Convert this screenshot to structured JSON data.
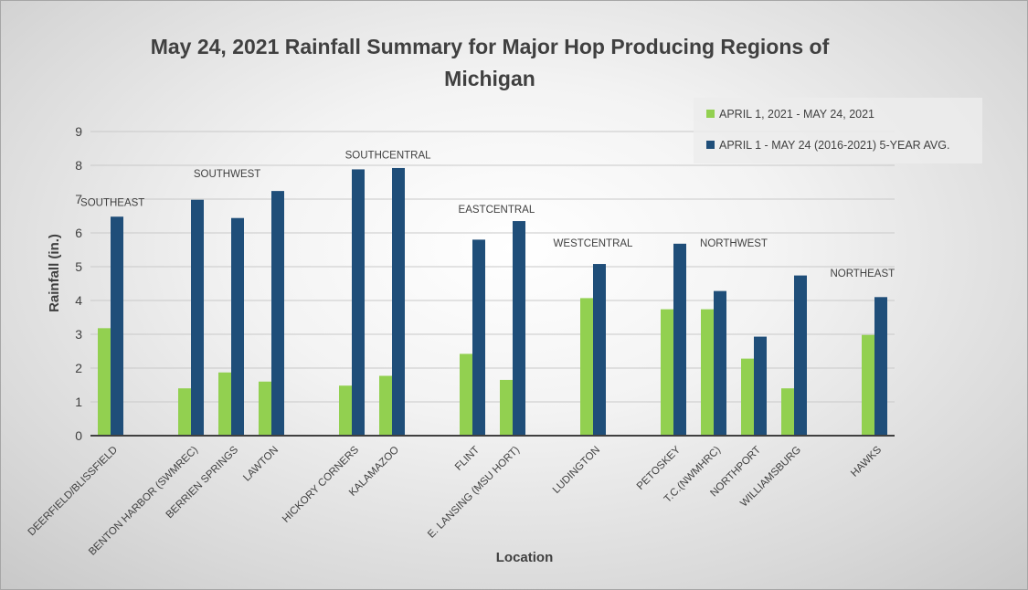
{
  "chart_data": {
    "type": "bar",
    "title_lines": [
      "May 24, 2021 Rainfall Summary for Major Hop Producing Regions of",
      "Michigan"
    ],
    "xlabel": "Location",
    "ylabel": "Rainfall (in.)",
    "ylim": [
      0,
      9
    ],
    "yticks": [
      "0",
      "1",
      "2",
      "3",
      "4",
      "5",
      "6",
      "7",
      "8",
      "9"
    ],
    "grid": true,
    "legend_position": "top-right",
    "categories": [
      "DEERFIELD/BLISSFIELD",
      "",
      "BENTON HARBOR (SWMREC)",
      "BERRIEN SPRINGS",
      "LAWTON",
      "",
      "HICKORY CORNERS",
      "KALAMAZOO",
      "",
      "FLINT",
      "E. LANSING (MSU HORT)",
      "",
      "LUDINGTON",
      "",
      "PETOSKEY",
      "T.C.(NWMHRC)",
      "NORTHPORT",
      "WILLIAMSBURG",
      "",
      "HAWKS"
    ],
    "series": [
      {
        "name": "APRIL 1, 2021 - MAY 24, 2021",
        "color": "#92d050",
        "values": [
          3.18,
          null,
          1.4,
          1.87,
          1.6,
          null,
          1.48,
          1.77,
          null,
          2.42,
          1.65,
          null,
          4.07,
          null,
          3.74,
          3.74,
          2.28,
          1.4,
          null,
          2.98
        ]
      },
      {
        "name": "APRIL 1 - MAY 24 (2016-2021) 5-YEAR AVG.",
        "color": "#1f4e79",
        "values": [
          6.48,
          null,
          6.98,
          6.44,
          7.24,
          null,
          7.88,
          7.92,
          null,
          5.8,
          6.35,
          null,
          5.08,
          null,
          5.68,
          4.28,
          2.93,
          4.74,
          null,
          4.1
        ]
      }
    ],
    "region_labels": [
      {
        "text": "SOUTHEAST",
        "slot": 0.55,
        "value": 6.8
      },
      {
        "text": "SOUTHWEST",
        "slot": 3.4,
        "value": 7.65
      },
      {
        "text": "SOUTHCENTRAL",
        "slot": 7.4,
        "value": 8.2
      },
      {
        "text": "EASTCENTRAL",
        "slot": 10.1,
        "value": 6.6
      },
      {
        "text": "WESTCENTRAL",
        "slot": 12.5,
        "value": 5.6
      },
      {
        "text": "NORTHWEST",
        "slot": 16.0,
        "value": 5.6
      },
      {
        "text": "NORTHEAST",
        "slot": 19.2,
        "value": 4.7
      }
    ]
  }
}
